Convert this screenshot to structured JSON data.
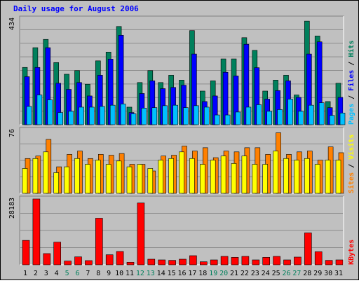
{
  "chart_data": [
    {
      "type": "bar",
      "title": "Daily usage for August 2006",
      "categories": [
        "1",
        "2",
        "3",
        "4",
        "5",
        "6",
        "7",
        "8",
        "9",
        "10",
        "11",
        "12",
        "13",
        "14",
        "15",
        "16",
        "17",
        "18",
        "19",
        "20",
        "21",
        "22",
        "23",
        "24",
        "25",
        "26",
        "27",
        "28",
        "29",
        "30",
        "31"
      ],
      "weekend_days": [
        "5",
        "6",
        "12",
        "13",
        "19",
        "20",
        "26",
        "27"
      ],
      "max_label": "434",
      "ylim": [
        0,
        434
      ],
      "grid": true,
      "series": [
        {
          "name": "Hits",
          "color": "#00805c",
          "values": [
            235,
            316,
            350,
            255,
            207,
            222,
            166,
            262,
            298,
            403,
            72,
            173,
            222,
            173,
            203,
            183,
            386,
            138,
            180,
            270,
            270,
            357,
            305,
            138,
            183,
            203,
            122,
            425,
            364,
            95,
            170
          ]
        },
        {
          "name": "Files",
          "color": "#0000ff",
          "values": [
            197,
            235,
            316,
            170,
            145,
            173,
            118,
            203,
            269,
            367,
            50,
            128,
            180,
            148,
            153,
            162,
            290,
            95,
            118,
            215,
            200,
            330,
            234,
            105,
            140,
            180,
            112,
            290,
            340,
            70,
            112
          ]
        },
        {
          "name": "Pages",
          "color": "#00c0ff",
          "values": [
            75,
            122,
            102,
            50,
            55,
            72,
            72,
            75,
            80,
            85,
            45,
            68,
            70,
            78,
            80,
            70,
            78,
            72,
            40,
            40,
            52,
            72,
            82,
            55,
            62,
            105,
            55,
            80,
            90,
            38,
            48
          ]
        }
      ]
    },
    {
      "type": "bar",
      "categories": [
        "1",
        "2",
        "3",
        "4",
        "5",
        "6",
        "7",
        "8",
        "9",
        "10",
        "11",
        "12",
        "13",
        "14",
        "15",
        "16",
        "17",
        "18",
        "19",
        "20",
        "21",
        "22",
        "23",
        "24",
        "25",
        "26",
        "27",
        "28",
        "29",
        "30",
        "31"
      ],
      "max_label": "76",
      "ylim": [
        0,
        76
      ],
      "grid": true,
      "series": [
        {
          "name": "Sites",
          "color": "#ff8000",
          "values": [
            42,
            45,
            65,
            32,
            47,
            51,
            42,
            47,
            46,
            48,
            35,
            35,
            27,
            45,
            46,
            57,
            51,
            55,
            43,
            51,
            50,
            55,
            55,
            47,
            73,
            47,
            50,
            51,
            40,
            56,
            49
          ]
        },
        {
          "name": "Visits",
          "color": "#ffff00",
          "values": [
            30,
            42,
            50,
            25,
            32,
            42,
            35,
            40,
            35,
            39,
            32,
            35,
            30,
            40,
            42,
            50,
            42,
            35,
            40,
            45,
            36,
            45,
            35,
            35,
            51,
            42,
            40,
            42,
            35,
            40,
            40
          ]
        }
      ]
    },
    {
      "type": "bar",
      "categories": [
        "1",
        "2",
        "3",
        "4",
        "5",
        "6",
        "7",
        "8",
        "9",
        "10",
        "11",
        "12",
        "13",
        "14",
        "15",
        "16",
        "17",
        "18",
        "19",
        "20",
        "21",
        "22",
        "23",
        "24",
        "25",
        "26",
        "27",
        "28",
        "29",
        "30",
        "31"
      ],
      "max_label": "28183",
      "ylim": [
        0,
        28183
      ],
      "grid": true,
      "series": [
        {
          "name": "KBytes",
          "color": "#ff0000",
          "values": [
            10450,
            28183,
            4800,
            9700,
            1600,
            3400,
            1800,
            19950,
            4300,
            5700,
            1100,
            26450,
            2400,
            2100,
            1900,
            2400,
            3900,
            1300,
            2100,
            3600,
            3200,
            3600,
            2100,
            3200,
            3600,
            2100,
            3300,
            13650,
            5600,
            1900,
            2100
          ]
        }
      ]
    }
  ]
}
